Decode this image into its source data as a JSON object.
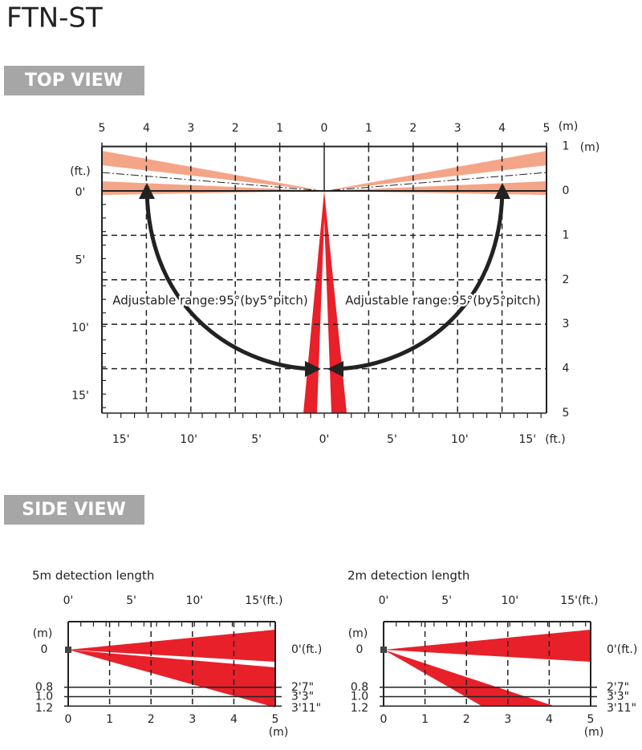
{
  "title": "FTN-ST",
  "top_view": {
    "heading": "TOP VIEW",
    "top_m_labels": [
      "5",
      "4",
      "3",
      "2",
      "1",
      "0",
      "1",
      "2",
      "3",
      "4",
      "5"
    ],
    "top_unit": "(m)",
    "right_m_labels": [
      "1",
      "0",
      "1",
      "2",
      "3",
      "4",
      "5"
    ],
    "right_unit": "(m)",
    "left_ft_unit": "(ft.)",
    "left_ft_labels": [
      "0'",
      "5'",
      "10'",
      "15'"
    ],
    "bottom_ft_labels": [
      "15'",
      "10'",
      "5'",
      "0'",
      "5'",
      "10'",
      "15'"
    ],
    "bottom_unit": "(ft.)",
    "annotations": [
      "Adjustable range:95°(by5°pitch)",
      "Adjustable range:95°(by5°pitch)"
    ]
  },
  "side_view": {
    "heading": "SIDE VIEW",
    "panels": [
      {
        "title": "5m detection length",
        "top_ft_labels": [
          "0'",
          "5'",
          "10'",
          "15'(ft.)"
        ],
        "left_unit": "(m)",
        "left_m_labels": [
          "0",
          "0.8",
          "1.0",
          "1.2"
        ],
        "right_ft_labels": [
          "0'(ft.)",
          "2'7\"",
          "3'3\"",
          "3'11\""
        ],
        "bottom_m_labels": [
          "0",
          "1",
          "2",
          "3",
          "4",
          "5"
        ],
        "bottom_unit": "(m)"
      },
      {
        "title": "2m detection length",
        "top_ft_labels": [
          "0'",
          "5'",
          "10'",
          "15'(ft.)"
        ],
        "left_unit": "(m)",
        "left_m_labels": [
          "0",
          "0.8",
          "1.0",
          "1.2"
        ],
        "right_ft_labels": [
          "0'(ft.)",
          "2'7\"",
          "3'3\"",
          "3'11\""
        ],
        "bottom_m_labels": [
          "0",
          "1",
          "2",
          "3",
          "4",
          "5"
        ],
        "bottom_unit": "(m)"
      }
    ]
  }
}
